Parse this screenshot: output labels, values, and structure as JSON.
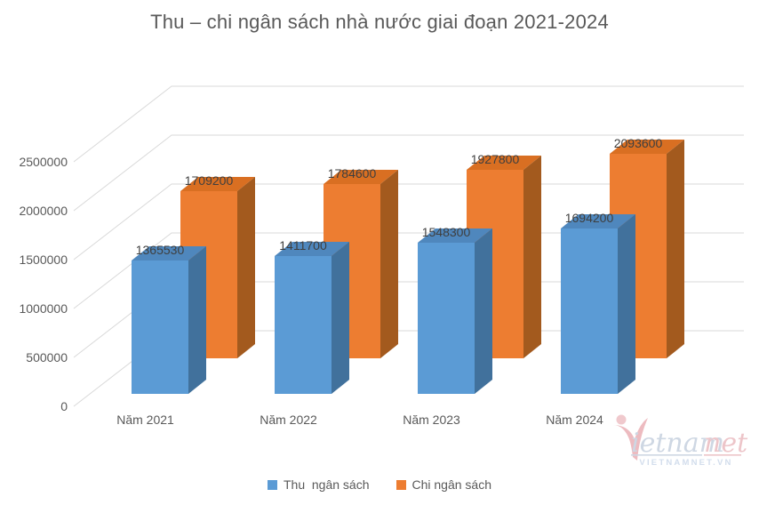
{
  "title": "Thu – chi ngân sách nhà nước giai đoạn 2021-2024",
  "chart_data": {
    "type": "bar",
    "style": "3d-clustered-column",
    "categories": [
      "Năm 2021",
      "Năm 2022",
      "Năm 2023",
      "Năm 2024"
    ],
    "series": [
      {
        "name": "Thu  ngân sách",
        "values": [
          1365530,
          1411700,
          1548300,
          1694200
        ],
        "color": "#5B9BD5",
        "color_top": "#4F87BD",
        "color_side": "#41719C"
      },
      {
        "name": "Chi ngân sách",
        "values": [
          1709200,
          1784600,
          1927800,
          2093600
        ],
        "color": "#ED7D31",
        "color_top": "#D96F22",
        "color_side": "#A35A1E"
      }
    ],
    "y_ticks": [
      0,
      500000,
      1000000,
      1500000,
      2000000,
      2500000
    ],
    "ylim": [
      0,
      2500000
    ],
    "xlabel": "",
    "ylabel": "",
    "grid": true,
    "legend_position": "bottom",
    "gridline_color": "#D9D9D9",
    "axis_label_color": "#595959",
    "data_label_color": "#3F3F3F"
  },
  "watermark": {
    "brand_left": "ietnam",
    "brand_right": "net",
    "caption": "VIETNAMNET.VN"
  }
}
